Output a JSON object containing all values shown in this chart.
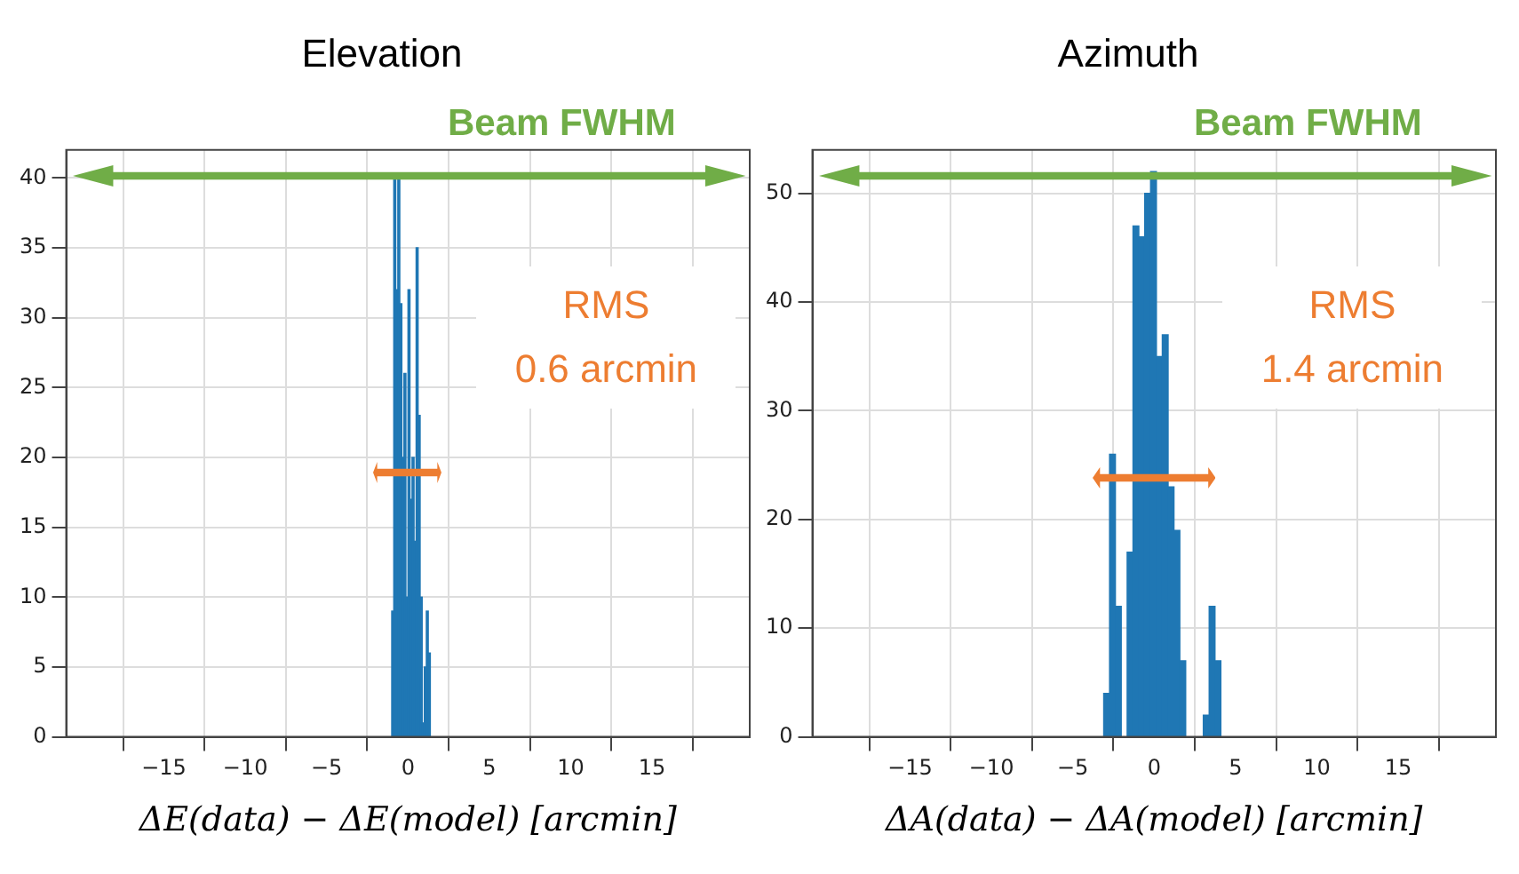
{
  "chart_data": [
    {
      "type": "histogram",
      "title": "Elevation",
      "xlabel": "ΔE(data) − ΔE(model) [arcmin]",
      "color": "#1f77b4",
      "bins": [
        -1,
        -0.875,
        -0.75,
        -0.625,
        -0.5,
        -0.375,
        -0.25,
        -0.125,
        0,
        0.125,
        0.25,
        0.375,
        0.5,
        0.625,
        0.75,
        0.875,
        1,
        1.125,
        1.25,
        1.375
      ],
      "values": [
        9,
        40,
        32,
        40,
        31,
        20,
        26,
        10,
        32,
        17,
        20,
        14,
        35,
        23,
        10,
        1,
        5,
        9,
        6
      ],
      "xlim": [
        -18,
        18
      ],
      "xticks": [
        {
          "value": -15,
          "label": "−15"
        },
        {
          "value": -10,
          "label": "−10"
        },
        {
          "value": -5,
          "label": "−5"
        },
        0,
        5,
        10,
        15
      ],
      "ylim": [
        0,
        42
      ],
      "yticks": [
        0,
        5,
        10,
        15,
        20,
        25,
        30,
        35,
        40
      ],
      "grid": true,
      "annotations": [
        "Beam FWHM",
        "RMS 0.6 arcmin"
      ]
    },
    {
      "type": "histogram",
      "title": "Azimuth",
      "xlabel": "ΔA(data) − ΔA(model) [arcmin]",
      "color": "#1f77b4",
      "bins": [
        -3.1,
        -2.74,
        -2.38,
        -2.02,
        -1.66,
        -1.3,
        -0.94,
        -0.58,
        -0.22,
        0.14,
        0.5,
        0.86,
        1.22,
        1.58,
        1.94,
        2.3,
        2.66,
        3.02,
        3.38,
        3.74,
        4.1
      ],
      "values": [
        4,
        26,
        12,
        0,
        17,
        47,
        46,
        50,
        52,
        35,
        37,
        23,
        19,
        7,
        0,
        0,
        0,
        2,
        12,
        7
      ],
      "xlim": [
        -18,
        18
      ],
      "xticks": [
        {
          "value": -15,
          "label": "−15"
        },
        {
          "value": -10,
          "label": "−10"
        },
        {
          "value": -5,
          "label": "−5"
        },
        0,
        5,
        10,
        15
      ],
      "ylim": [
        0,
        54
      ],
      "yticks": [
        0,
        10,
        20,
        30,
        40,
        50
      ],
      "grid": true,
      "annotations": [
        "Beam FWHM",
        "RMS 1.4 arcmin"
      ]
    }
  ]
}
